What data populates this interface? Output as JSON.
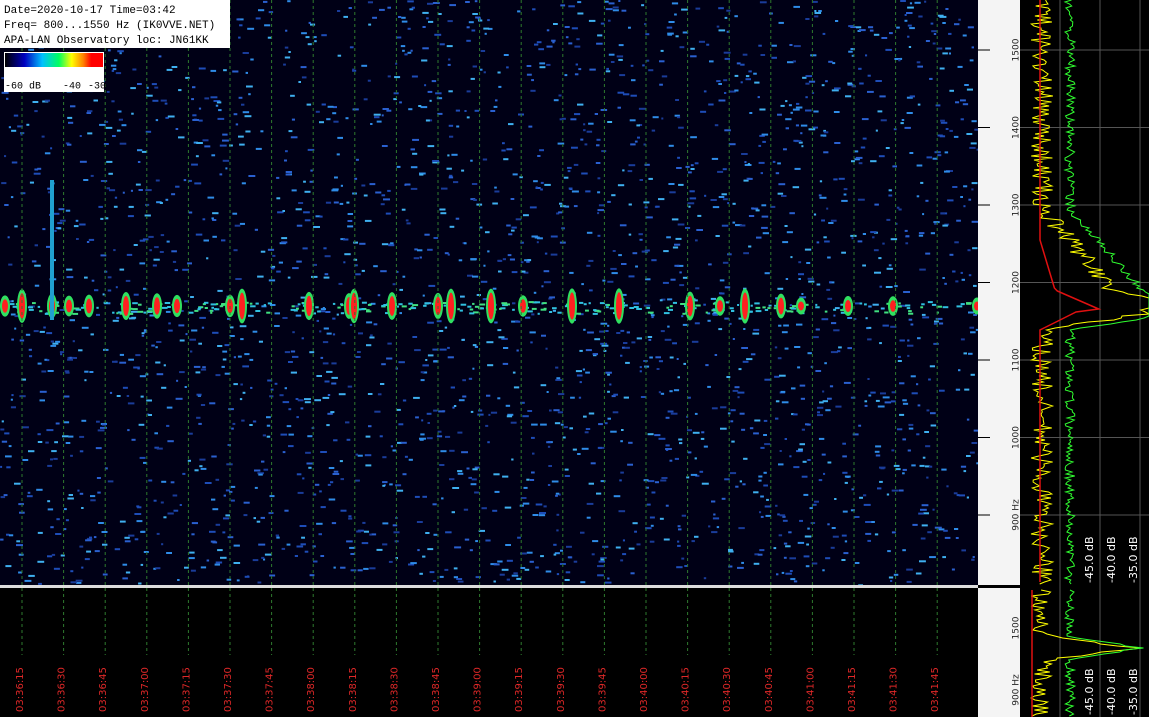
{
  "header": {
    "lines": [
      "Date=2020-10-17 Time=03:42",
      "Freq= 800...1550 Hz (IK0VVE.NET)",
      "APA-LAN Observatory loc: JN61KK"
    ]
  },
  "colorbar": {
    "labels": [
      "-60 dB",
      "-40",
      "-30"
    ]
  },
  "time_axis": {
    "labels": [
      "03:36:15",
      "03:36:30",
      "03:36:45",
      "03:37:00",
      "03:37:15",
      "03:37:30",
      "03:37:45",
      "03:38:00",
      "03:38:15",
      "03:38:30",
      "03:38:45",
      "03:39:00",
      "03:39:15",
      "03:39:30",
      "03:39:45",
      "03:40:00",
      "03:40:15",
      "03:40:30",
      "03:40:45",
      "03:41:00",
      "03:41:15",
      "03:41:30",
      "03:41:45"
    ]
  },
  "freq_scale": {
    "labels": [
      "1500",
      "1400",
      "1300",
      "1200",
      "1100",
      "1000",
      "900 Hz"
    ]
  },
  "level_scale": {
    "labels": [
      "-45.0 dB",
      "-40.0 dB",
      "-35.0 dB"
    ]
  },
  "bottom_panel": {
    "freq_labels": [
      "1500",
      "900 Hz"
    ],
    "level_labels": [
      "-45.0 dB",
      "-40.0 dB",
      "-35.0 dB"
    ]
  }
}
